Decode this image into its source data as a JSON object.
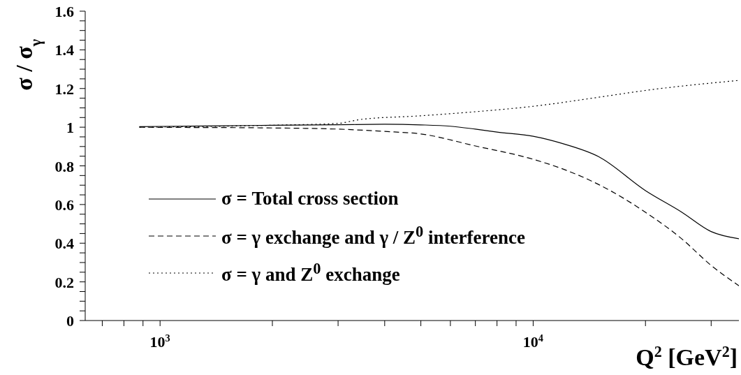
{
  "chart_data": {
    "type": "line",
    "xlabel": "Q$^{2}$ [GeV$^{2}$]",
    "ylabel": "σ / σ$_{γ}$",
    "log": "x",
    "grid": false,
    "marker": "none",
    "legend": "bottom left",
    "xlim": [
      630,
      35600
    ],
    "ylim": [
      0,
      1.6
    ],
    "xticks": [
      {
        "value": 700,
        "label": null
      },
      {
        "value": 800,
        "label": null
      },
      {
        "value": 900,
        "label": null
      },
      {
        "value": 1000,
        "label": "10$^{3}$"
      },
      {
        "value": 2000,
        "label": null
      },
      {
        "value": 3000,
        "label": null
      },
      {
        "value": 4000,
        "label": null
      },
      {
        "value": 5000,
        "label": null
      },
      {
        "value": 6000,
        "label": null
      },
      {
        "value": 7000,
        "label": null
      },
      {
        "value": 8000,
        "label": null
      },
      {
        "value": 9000,
        "label": null
      },
      {
        "value": 10000,
        "label": "10$^{4}$"
      },
      {
        "value": 20000,
        "label": null
      },
      {
        "value": 30000,
        "label": null
      }
    ],
    "yticks": [
      0,
      {
        "value": 0.05,
        "label": null
      },
      {
        "value": 0.1,
        "label": null
      },
      {
        "value": 0.15,
        "label": null
      },
      0.2,
      {
        "value": 0.25,
        "label": null
      },
      {
        "value": 0.3,
        "label": null
      },
      {
        "value": 0.35,
        "label": null
      },
      0.4,
      {
        "value": 0.45,
        "label": null
      },
      {
        "value": 0.5,
        "label": null
      },
      {
        "value": 0.55,
        "label": null
      },
      0.6,
      {
        "value": 0.65,
        "label": null
      },
      {
        "value": 0.7,
        "label": null
      },
      {
        "value": 0.75,
        "label": null
      },
      0.8,
      {
        "value": 0.85,
        "label": null
      },
      {
        "value": 0.9,
        "label": null
      },
      {
        "value": 0.95,
        "label": null
      },
      1,
      {
        "value": 1.05,
        "label": null
      },
      {
        "value": 1.1,
        "label": null
      },
      {
        "value": 1.15,
        "label": null
      },
      1.2,
      {
        "value": 1.25,
        "label": null
      },
      {
        "value": 1.3,
        "label": null
      },
      {
        "value": 1.35,
        "label": null
      },
      1.4,
      {
        "value": 1.45,
        "label": null
      },
      {
        "value": 1.5,
        "label": null
      },
      {
        "value": 1.55,
        "label": null
      },
      1.6
    ],
    "series": [
      {
        "name": "σ = Total cross section",
        "color": "#000000",
        "line_style": "solid",
        "x": [
          880,
          1000,
          1500,
          2000,
          3000,
          4000,
          5000,
          6000,
          7000,
          8000,
          10000,
          12000,
          15000,
          20000,
          25000,
          30000,
          35600
        ],
        "values": [
          1.003,
          1.004,
          1.007,
          1.01,
          1.013,
          1.015,
          1.012,
          1.005,
          0.99,
          0.975,
          0.953,
          0.915,
          0.847,
          0.672,
          0.561,
          0.46,
          0.423
        ]
      },
      {
        "name": "σ = γ exchange and γ / Z$^{0}$ interference",
        "color": "#000000",
        "line_style": "dashed",
        "x": [
          880,
          1000,
          1500,
          2000,
          3000,
          4000,
          5000,
          7000,
          10000,
          12000,
          15000,
          20000,
          25000,
          30000,
          35600
        ],
        "values": [
          1.0,
          0.999,
          0.998,
          0.996,
          0.99,
          0.978,
          0.965,
          0.903,
          0.834,
          0.784,
          0.703,
          0.56,
          0.423,
          0.285,
          0.18
        ]
      },
      {
        "name": "σ = γ and Z$^{0}$ exchange",
        "color": "#000000",
        "line_style": "dotted",
        "x": [
          880,
          1000,
          2000,
          3000,
          3450,
          5000,
          7000,
          10000,
          15000,
          20000,
          35600
        ],
        "values": [
          1.0,
          1.001,
          1.01,
          1.02,
          1.04,
          1.059,
          1.08,
          1.108,
          1.155,
          1.19,
          1.242
        ]
      }
    ]
  }
}
